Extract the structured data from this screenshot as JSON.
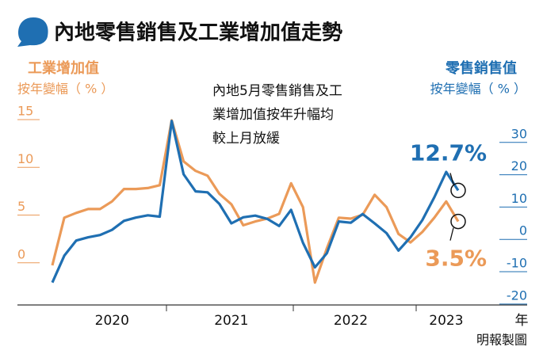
{
  "chart_data": {
    "type": "line",
    "title": "內地零售銷售及工業增加值走勢",
    "annotation": [
      "內地5月零售銷售及工",
      "業增加值按年升幅均",
      "較上月放緩"
    ],
    "ylabel_sub": "按年變幅（ % ）",
    "y2label_sub": "按年變幅（ % ）",
    "xlabel": "年",
    "source": "明報製圖",
    "categories": [
      null,
      null,
      null,
      null,
      null,
      "2020",
      null,
      null,
      null,
      null,
      null,
      null,
      null,
      null,
      null,
      "2021",
      null,
      null,
      null,
      null,
      null,
      null,
      null,
      null,
      null,
      "2022",
      null,
      null,
      null,
      null,
      null,
      null,
      null,
      "2023",
      null
    ],
    "ylim": [
      -5,
      16
    ],
    "yticks": [
      0,
      5,
      10,
      15
    ],
    "y2lim": [
      -22,
      40
    ],
    "y2ticks": [
      -20,
      -10,
      0,
      10,
      20,
      30
    ],
    "series": [
      {
        "name": "工業增加值",
        "color": "#eb9a58",
        "values": [
          -1.1,
          3.9,
          4.4,
          4.8,
          4.8,
          5.6,
          6.9,
          6.9,
          7.0,
          7.3,
          14.1,
          9.8,
          8.8,
          8.3,
          6.4,
          5.3,
          3.1,
          3.5,
          3.8,
          4.3,
          7.5,
          5.0,
          -2.9,
          0.7,
          3.9,
          3.8,
          4.2,
          6.3,
          5.0,
          2.2,
          1.3,
          2.4,
          3.9,
          5.6,
          3.5
        ],
        "value_labels": [
          null,
          null,
          null,
          null,
          null,
          null,
          null,
          null,
          null,
          null,
          null,
          null,
          null,
          null,
          null,
          null,
          null,
          null,
          null,
          null,
          null,
          null,
          null,
          null,
          null,
          null,
          null,
          null,
          null,
          null,
          null,
          null,
          null,
          null,
          "3.5%"
        ]
      },
      {
        "name": "零售銷售值",
        "color": "#1f6fb2",
        "axis": "y2",
        "values": [
          -15.8,
          -7.5,
          -2.8,
          -1.8,
          -1.1,
          0.5,
          3.3,
          4.3,
          5.0,
          4.6,
          34.2,
          17.7,
          12.4,
          12.1,
          8.5,
          2.5,
          4.4,
          4.9,
          3.9,
          1.7,
          6.7,
          -3.5,
          -11.1,
          -6.7,
          3.1,
          2.7,
          5.4,
          2.5,
          -0.5,
          -5.9,
          -1.8,
          3.5,
          10.6,
          18.4,
          12.7
        ],
        "value_labels": [
          null,
          null,
          null,
          null,
          null,
          null,
          null,
          null,
          null,
          null,
          null,
          null,
          null,
          null,
          null,
          null,
          null,
          null,
          null,
          null,
          null,
          null,
          null,
          null,
          null,
          null,
          null,
          null,
          null,
          null,
          null,
          null,
          null,
          null,
          "12.7%"
        ]
      }
    ]
  }
}
